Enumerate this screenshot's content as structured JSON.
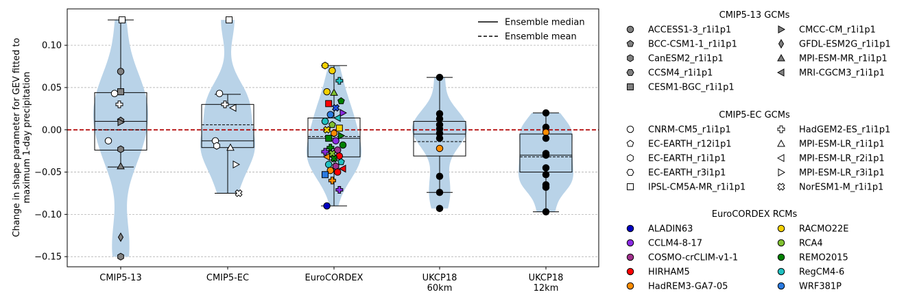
{
  "chart_data": {
    "type": "violin",
    "ylabel": "Change in shape parameter for GEV fitted to\nmaximum 1-day precipitation",
    "ylim": [
      -0.162,
      0.143
    ],
    "yticks": [
      0.1,
      0.05,
      0.0,
      -0.05,
      -0.1,
      -0.15
    ],
    "ytick_labels": [
      "0.10",
      "0.05",
      "0.00",
      "−0.05",
      "−0.10",
      "−0.15"
    ],
    "grid": "horizontal dashed",
    "zero_line": {
      "value": 0.0,
      "color": "#b00000",
      "style": "dashed"
    },
    "violin_color": "#b9d3e8",
    "legend_upper": [
      {
        "label": "Ensemble median",
        "style": "solid"
      },
      {
        "label": "Ensemble mean",
        "style": "dashed"
      }
    ],
    "groups": [
      {
        "label": "CMIP5-13",
        "box": {
          "q1": -0.024,
          "median": 0.01,
          "mean": 0.0,
          "q3": 0.044,
          "whisker_low": -0.044,
          "whisker_high": 0.13
        },
        "violin_range": [
          -0.15,
          0.13
        ],
        "points": [
          {
            "y": 0.069,
            "marker": "circle",
            "color": "#808080"
          },
          {
            "y": 0.045,
            "marker": "square",
            "color": "#808080"
          },
          {
            "y": 0.011,
            "marker": "pentagon",
            "color": "#808080"
          },
          {
            "y": 0.009,
            "marker": "triangle-right",
            "color": "#808080"
          },
          {
            "y": -0.023,
            "marker": "hexagon",
            "color": "#808080"
          },
          {
            "y": -0.043,
            "marker": "triangle-up",
            "color": "#808080"
          },
          {
            "y": -0.127,
            "marker": "diamond",
            "color": "#808080"
          },
          {
            "y": -0.15,
            "marker": "hexagon",
            "color": "#808080"
          },
          {
            "y": 0.13,
            "marker": "square",
            "color": "#ffffff"
          },
          {
            "y": 0.043,
            "marker": "circle",
            "color": "#ffffff"
          },
          {
            "y": 0.03,
            "marker": "plus",
            "color": "#ffffff"
          },
          {
            "y": -0.013,
            "marker": "circle",
            "color": "#ffffff"
          }
        ]
      },
      {
        "label": "CMIP5-EC",
        "box": {
          "q1": -0.021,
          "median": -0.013,
          "mean": 0.006,
          "q3": 0.03,
          "whisker_low": -0.075,
          "whisker_high": 0.042
        },
        "violin_range": [
          -0.075,
          0.13
        ],
        "points": [
          {
            "y": 0.13,
            "marker": "square",
            "color": "#ffffff"
          },
          {
            "y": 0.043,
            "marker": "circle",
            "color": "#ffffff"
          },
          {
            "y": 0.03,
            "marker": "plus",
            "color": "#ffffff"
          },
          {
            "y": 0.026,
            "marker": "triangle-left",
            "color": "#ffffff"
          },
          {
            "y": -0.013,
            "marker": "circle",
            "color": "#ffffff"
          },
          {
            "y": -0.019,
            "marker": "hexagon",
            "color": "#ffffff"
          },
          {
            "y": -0.021,
            "marker": "triangle-up",
            "color": "#ffffff"
          },
          {
            "y": -0.041,
            "marker": "triangle-right",
            "color": "#ffffff"
          },
          {
            "y": -0.075,
            "marker": "cross",
            "color": "#ffffff"
          }
        ]
      },
      {
        "label": "EuroCORDEX",
        "box": {
          "q1": -0.032,
          "median": -0.01,
          "mean": -0.008,
          "q3": 0.014,
          "whisker_low": -0.09,
          "whisker_high": 0.076
        },
        "violin_range": [
          -0.09,
          0.076
        ],
        "points": [
          {
            "y": 0.076,
            "marker": "hexagon",
            "color": "#f4d000"
          },
          {
            "y": 0.07,
            "marker": "circle",
            "color": "#f4d000"
          },
          {
            "y": 0.058,
            "marker": "plus",
            "color": "#20c0c0"
          },
          {
            "y": 0.045,
            "marker": "circle",
            "color": "#f4d000"
          },
          {
            "y": 0.044,
            "marker": "triangle-up",
            "color": "#80c030"
          },
          {
            "y": 0.034,
            "marker": "pentagon",
            "color": "#008000"
          },
          {
            "y": 0.031,
            "marker": "square",
            "color": "#ff0000"
          },
          {
            "y": 0.026,
            "marker": "cross",
            "color": "#1f4fe0"
          },
          {
            "y": 0.02,
            "marker": "triangle-right",
            "color": "#8a2be2"
          },
          {
            "y": 0.018,
            "marker": "circle",
            "color": "#2a7ae0"
          },
          {
            "y": 0.014,
            "marker": "triangle-left",
            "color": "#20c0c0"
          },
          {
            "y": 0.01,
            "marker": "circle",
            "color": "#20c0c0"
          },
          {
            "y": 0.006,
            "marker": "pentagon",
            "color": "#80c030"
          },
          {
            "y": 0.002,
            "marker": "square",
            "color": "#f4d000"
          },
          {
            "y": 0.0,
            "marker": "cross",
            "color": "#f4d000"
          },
          {
            "y": -0.004,
            "marker": "hexagon",
            "color": "#ff8c00"
          },
          {
            "y": -0.007,
            "marker": "triangle-right",
            "color": "#008000"
          },
          {
            "y": -0.01,
            "marker": "square",
            "color": "#008000"
          },
          {
            "y": -0.013,
            "marker": "circle",
            "color": "#8a2be2"
          },
          {
            "y": -0.018,
            "marker": "circle",
            "color": "#008000"
          },
          {
            "y": -0.021,
            "marker": "plus",
            "color": "#008000"
          },
          {
            "y": -0.024,
            "marker": "circle",
            "color": "#a0308c"
          },
          {
            "y": -0.026,
            "marker": "plus",
            "color": "#8a2be2"
          },
          {
            "y": -0.028,
            "marker": "cross",
            "color": "#80c030"
          },
          {
            "y": -0.031,
            "marker": "circle",
            "color": "#ff0000"
          },
          {
            "y": -0.032,
            "marker": "triangle-left",
            "color": "#ff8c00"
          },
          {
            "y": -0.034,
            "marker": "cross",
            "color": "#008000"
          },
          {
            "y": -0.038,
            "marker": "pentagon",
            "color": "#20c0c0"
          },
          {
            "y": -0.041,
            "marker": "circle",
            "color": "#20c0c0"
          },
          {
            "y": -0.043,
            "marker": "hexagon",
            "color": "#a0308c"
          },
          {
            "y": -0.046,
            "marker": "triangle-left",
            "color": "#ff0000"
          },
          {
            "y": -0.048,
            "marker": "circle",
            "color": "#ff8c00"
          },
          {
            "y": -0.05,
            "marker": "circle",
            "color": "#ff0000"
          },
          {
            "y": -0.053,
            "marker": "square",
            "color": "#2a7ae0"
          },
          {
            "y": -0.06,
            "marker": "plus",
            "color": "#ff8c00"
          },
          {
            "y": -0.071,
            "marker": "plus",
            "color": "#8a2be2"
          },
          {
            "y": -0.09,
            "marker": "circle",
            "color": "#0000c0"
          }
        ]
      },
      {
        "label": "UKCP18\n60km",
        "box": {
          "q1": -0.031,
          "median": -0.005,
          "mean": -0.014,
          "q3": 0.01,
          "whisker_low": -0.074,
          "whisker_high": 0.062
        },
        "violin_range": [
          -0.093,
          0.062
        ],
        "points": [
          {
            "y": 0.062,
            "marker": "circle",
            "color": "#000000"
          },
          {
            "y": 0.019,
            "marker": "circle",
            "color": "#000000"
          },
          {
            "y": 0.013,
            "marker": "circle",
            "color": "#000000"
          },
          {
            "y": 0.006,
            "marker": "circle",
            "color": "#000000"
          },
          {
            "y": 0.001,
            "marker": "circle",
            "color": "#000000"
          },
          {
            "y": -0.004,
            "marker": "circle",
            "color": "#000000"
          },
          {
            "y": -0.01,
            "marker": "circle",
            "color": "#000000"
          },
          {
            "y": -0.022,
            "marker": "circle",
            "color": "#ff8c00"
          },
          {
            "y": -0.055,
            "marker": "circle",
            "color": "#000000"
          },
          {
            "y": -0.074,
            "marker": "circle",
            "color": "#000000"
          },
          {
            "y": -0.093,
            "marker": "circle",
            "color": "#000000"
          }
        ]
      },
      {
        "label": "UKCP18\n12km",
        "box": {
          "q1": -0.05,
          "median": -0.03,
          "mean": -0.032,
          "q3": -0.005,
          "whisker_low": -0.097,
          "whisker_high": 0.02
        },
        "violin_range": [
          -0.097,
          0.02
        ],
        "points": [
          {
            "y": 0.02,
            "marker": "circle",
            "color": "#000000"
          },
          {
            "y": 0.003,
            "marker": "circle",
            "color": "#000000"
          },
          {
            "y": -0.003,
            "marker": "circle",
            "color": "#ff8c00"
          },
          {
            "y": -0.01,
            "marker": "circle",
            "color": "#000000"
          },
          {
            "y": -0.028,
            "marker": "circle",
            "color": "#000000"
          },
          {
            "y": -0.03,
            "marker": "circle",
            "color": "#000000"
          },
          {
            "y": -0.045,
            "marker": "circle",
            "color": "#000000"
          },
          {
            "y": -0.053,
            "marker": "circle",
            "color": "#000000"
          },
          {
            "y": -0.065,
            "marker": "circle",
            "color": "#000000"
          },
          {
            "y": -0.068,
            "marker": "circle",
            "color": "#000000"
          },
          {
            "y": -0.097,
            "marker": "circle",
            "color": "#000000"
          }
        ]
      }
    ],
    "side_legend": [
      {
        "title": "CMIP5-13 GCMs",
        "fill": "#808080",
        "col1": [
          {
            "label": "ACCESS1-3_r1i1p1",
            "marker": "circle"
          },
          {
            "label": "BCC-CSM1-1_r1i1p1",
            "marker": "pentagon"
          },
          {
            "label": "CanESM2_r1i1p1",
            "marker": "hexagon"
          },
          {
            "label": "CCSM4_r1i1p1",
            "marker": "hexagon2"
          },
          {
            "label": "CESM1-BGC_r1i1p1",
            "marker": "square"
          }
        ],
        "col2": [
          {
            "label": "CMCC-CM_r1i1p1",
            "marker": "triangle-right"
          },
          {
            "label": "GFDL-ESM2G_r1i1p1",
            "marker": "diamond"
          },
          {
            "label": "MPI-ESM-MR_r1i1p1",
            "marker": "triangle-up"
          },
          {
            "label": "MRI-CGCM3_r1i1p1",
            "marker": "triangle-left"
          }
        ]
      },
      {
        "title": "CMIP5-EC GCMs",
        "fill": "#ffffff",
        "col1": [
          {
            "label": "CNRM-CM5_r1i1p1",
            "marker": "circle"
          },
          {
            "label": "EC-EARTH_r12i1p1",
            "marker": "pentagon"
          },
          {
            "label": "EC-EARTH_r1i1p1",
            "marker": "hexagon"
          },
          {
            "label": "EC-EARTH_r3i1p1",
            "marker": "hexagon2"
          },
          {
            "label": "IPSL-CM5A-MR_r1i1p1",
            "marker": "square"
          }
        ],
        "col2": [
          {
            "label": "HadGEM2-ES_r1i1p1",
            "marker": "plus"
          },
          {
            "label": "MPI-ESM-LR_r1i1p1",
            "marker": "triangle-up"
          },
          {
            "label": "MPI-ESM-LR_r2i1p1",
            "marker": "triangle-left"
          },
          {
            "label": "MPI-ESM-LR_r3i1p1",
            "marker": "triangle-right"
          },
          {
            "label": "NorESM1-M_r1i1p1",
            "marker": "cross"
          }
        ]
      },
      {
        "title": "EuroCORDEX RCMs",
        "col1": [
          {
            "label": "ALADIN63",
            "color": "#0000c0"
          },
          {
            "label": "CCLM4-8-17",
            "color": "#8a2be2"
          },
          {
            "label": "COSMO-crCLIM-v1-1",
            "color": "#a0308c"
          },
          {
            "label": "HIRHAM5",
            "color": "#ff0000"
          },
          {
            "label": "HadREM3-GA7-05",
            "color": "#ff8c00"
          }
        ],
        "col2": [
          {
            "label": "RACMO22E",
            "color": "#f4d000"
          },
          {
            "label": "RCA4",
            "color": "#80c030"
          },
          {
            "label": "REMO2015",
            "color": "#008000"
          },
          {
            "label": "RegCM4-6",
            "color": "#20c0c0"
          },
          {
            "label": "WRF381P",
            "color": "#2a7ae0"
          }
        ]
      }
    ]
  }
}
